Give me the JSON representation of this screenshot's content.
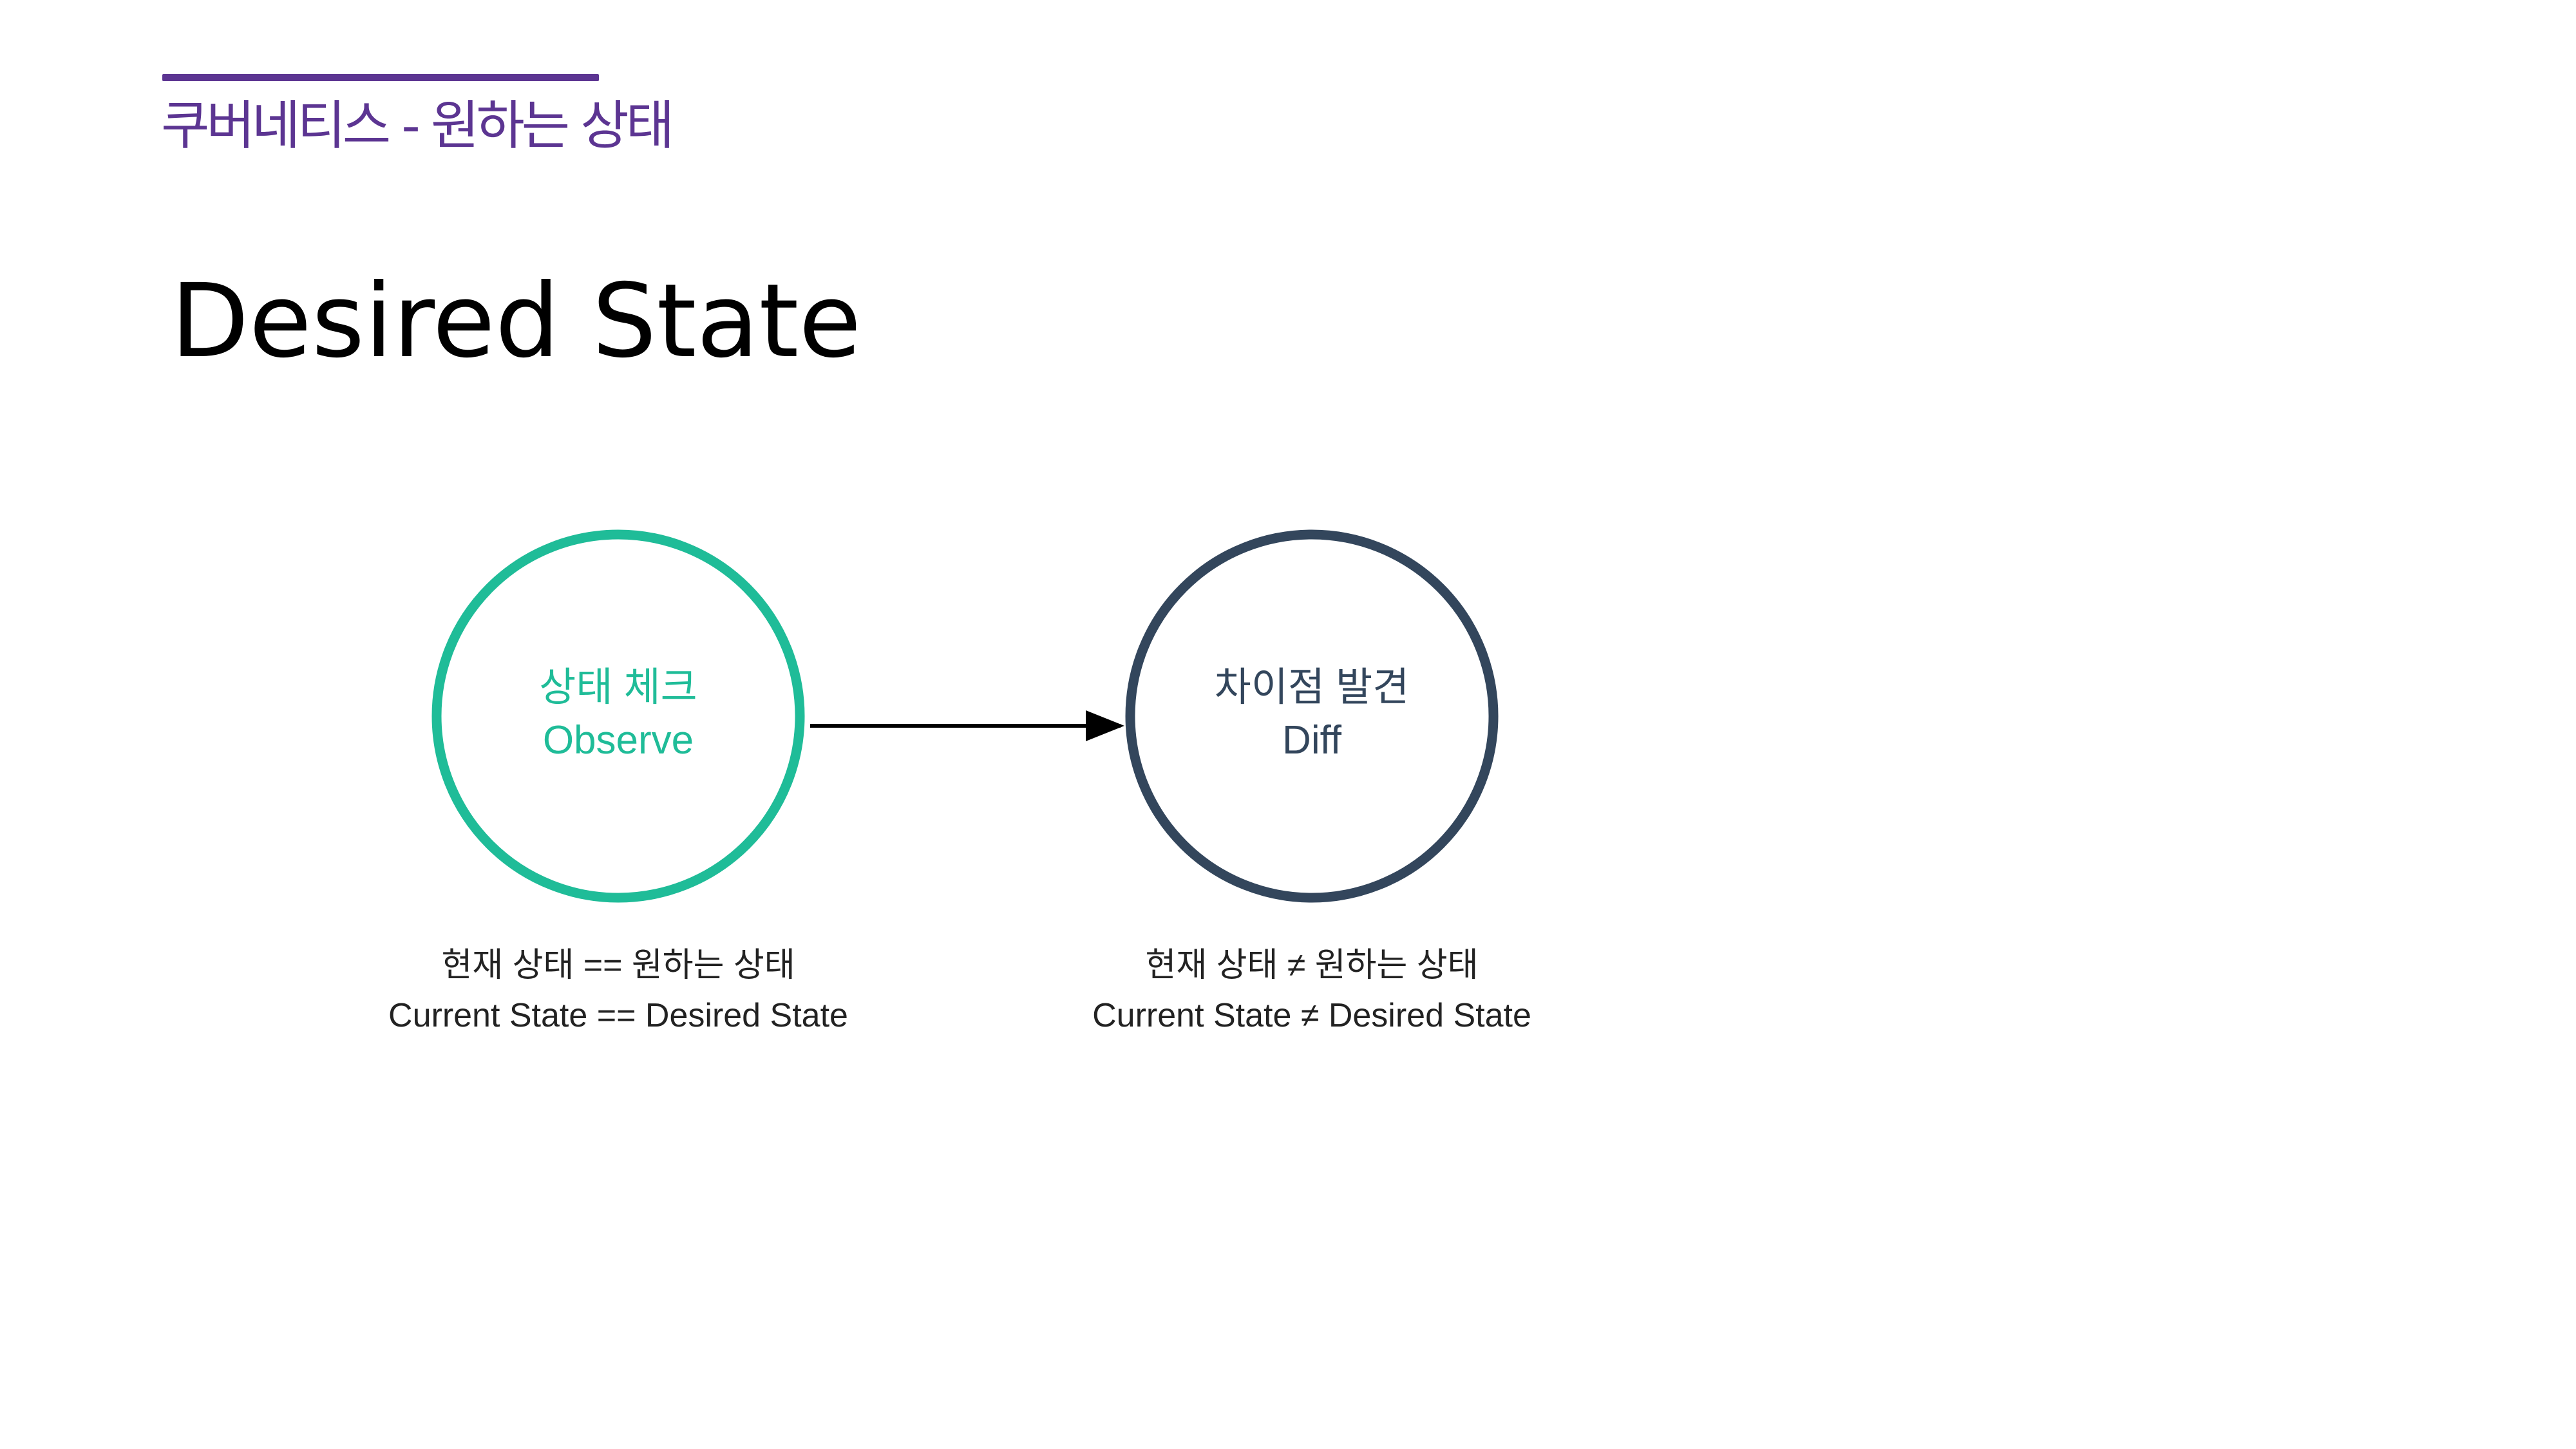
{
  "colors": {
    "accent": "#5c3592",
    "observe": "#1fbc98",
    "diff": "#33465c",
    "arrow": "#000000"
  },
  "header": {
    "section": "쿠버네티스 - 원하는 상태",
    "title": "Desired State"
  },
  "diagram": {
    "nodes": [
      {
        "id": "observe",
        "label_ko": "상태 체크",
        "label_en": "Observe",
        "caption_ko": "현재 상태 == 원하는 상태",
        "caption_en": "Current State == Desired State"
      },
      {
        "id": "diff",
        "label_ko": "차이점 발견",
        "label_en": "Diff",
        "caption_ko": "현재 상태 ≠ 원하는 상태",
        "caption_en": "Current State ≠ Desired State"
      }
    ],
    "edges": [
      {
        "from": "observe",
        "to": "diff"
      }
    ]
  }
}
